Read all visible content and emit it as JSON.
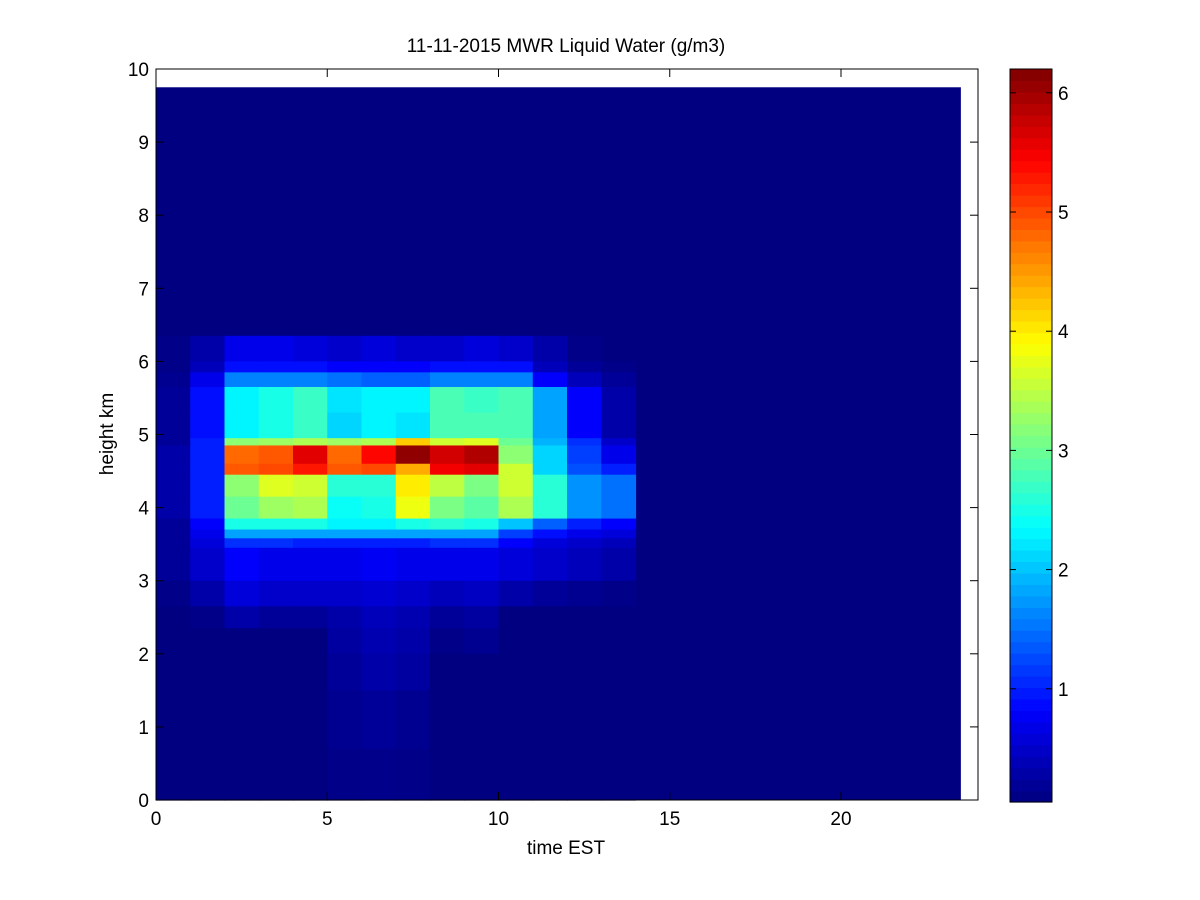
{
  "chart_data": {
    "type": "heatmap",
    "title": "11-11-2015 MWR Liquid Water (g/m3)",
    "xlabel": "time EST",
    "ylabel": "height km",
    "xlim": [
      0,
      24
    ],
    "ylim": [
      0,
      10
    ],
    "xticks": [
      "0",
      "5",
      "10",
      "15",
      "20"
    ],
    "yticks": [
      "0",
      "1",
      "2",
      "3",
      "4",
      "5",
      "6",
      "7",
      "8",
      "9",
      "10"
    ],
    "colorbar": {
      "colormap": "jet",
      "range": [
        0.05,
        6.2
      ],
      "ticks": [
        "1",
        "2",
        "3",
        "4",
        "5",
        "6"
      ]
    },
    "grid": false,
    "data_extent": {
      "x": [
        0,
        23.5
      ],
      "y": [
        0,
        9.75
      ]
    },
    "time_columns": [
      0.5,
      1.5,
      2.5,
      3.5,
      4.5,
      5.5,
      6.5,
      7.5,
      8.5,
      9.5,
      10.5,
      11.5,
      12.5,
      13.5
    ],
    "height_bands": [
      {
        "range": [
          6.0,
          6.35
        ],
        "values": [
          0.1,
          0.3,
          0.7,
          0.7,
          0.6,
          0.5,
          0.6,
          0.5,
          0.5,
          0.6,
          0.5,
          0.3,
          0.1,
          0.05
        ]
      },
      {
        "range": [
          5.85,
          6.0
        ],
        "values": [
          0.1,
          0.4,
          0.9,
          0.9,
          0.9,
          0.8,
          0.8,
          0.8,
          0.9,
          0.9,
          0.9,
          0.4,
          0.2,
          0.1
        ]
      },
      {
        "range": [
          5.65,
          5.85
        ],
        "values": [
          0.15,
          0.7,
          1.6,
          1.6,
          1.6,
          1.5,
          1.4,
          1.4,
          1.6,
          1.6,
          1.6,
          0.8,
          0.4,
          0.2
        ]
      },
      {
        "range": [
          5.3,
          5.65
        ],
        "values": [
          0.2,
          0.9,
          2.3,
          2.5,
          2.7,
          2.2,
          2.3,
          2.3,
          2.8,
          2.7,
          2.8,
          1.8,
          0.8,
          0.3
        ]
      },
      {
        "range": [
          4.95,
          5.3
        ],
        "values": [
          0.2,
          0.9,
          2.3,
          2.5,
          2.7,
          2.1,
          2.3,
          2.2,
          2.8,
          2.8,
          2.8,
          1.8,
          0.8,
          0.3
        ]
      },
      {
        "range": [
          4.85,
          4.95
        ],
        "values": [
          0.2,
          1.0,
          3.2,
          3.3,
          3.4,
          3.3,
          3.4,
          4.2,
          3.6,
          3.7,
          3.0,
          1.9,
          1.1,
          0.5
        ]
      },
      {
        "range": [
          4.6,
          4.85
        ],
        "values": [
          0.3,
          1.0,
          4.8,
          4.9,
          5.6,
          4.8,
          5.4,
          6.1,
          5.7,
          5.9,
          3.2,
          2.1,
          1.2,
          0.7
        ]
      },
      {
        "range": [
          4.45,
          4.6
        ],
        "values": [
          0.3,
          1.0,
          4.9,
          5.0,
          5.3,
          4.9,
          5.0,
          4.4,
          5.5,
          5.6,
          3.6,
          2.1,
          1.3,
          1.0
        ]
      },
      {
        "range": [
          4.15,
          4.45
        ],
        "values": [
          0.3,
          1.0,
          3.2,
          3.7,
          3.6,
          2.6,
          2.6,
          4.0,
          3.5,
          3.1,
          3.6,
          2.6,
          1.7,
          1.5
        ]
      },
      {
        "range": [
          3.85,
          4.15
        ],
        "values": [
          0.3,
          1.0,
          3.0,
          3.3,
          3.4,
          2.4,
          2.5,
          3.8,
          3.1,
          2.9,
          3.4,
          2.6,
          1.7,
          1.5
        ]
      },
      {
        "range": [
          3.7,
          3.85
        ],
        "values": [
          0.2,
          0.8,
          2.5,
          2.5,
          2.5,
          2.3,
          2.3,
          2.5,
          2.6,
          2.5,
          2.0,
          1.4,
          1.0,
          0.8
        ]
      },
      {
        "range": [
          3.58,
          3.7
        ],
        "values": [
          0.2,
          0.7,
          1.8,
          1.8,
          1.8,
          1.8,
          1.8,
          1.8,
          1.8,
          1.8,
          1.2,
          0.9,
          0.7,
          0.6
        ]
      },
      {
        "range": [
          3.45,
          3.58
        ],
        "values": [
          0.2,
          0.6,
          1.1,
          1.1,
          1.0,
          1.0,
          1.0,
          1.0,
          1.1,
          1.1,
          0.8,
          0.6,
          0.5,
          0.4
        ]
      },
      {
        "range": [
          3.0,
          3.45
        ],
        "values": [
          0.2,
          0.5,
          0.8,
          0.7,
          0.7,
          0.7,
          0.75,
          0.7,
          0.7,
          0.7,
          0.6,
          0.5,
          0.4,
          0.3
        ]
      },
      {
        "range": [
          2.65,
          3.0
        ],
        "values": [
          0.1,
          0.3,
          0.6,
          0.5,
          0.5,
          0.5,
          0.55,
          0.5,
          0.4,
          0.45,
          0.3,
          0.2,
          0.15,
          0.1
        ]
      },
      {
        "range": [
          2.35,
          2.65
        ],
        "values": [
          0.05,
          0.1,
          0.3,
          0.2,
          0.2,
          0.3,
          0.4,
          0.35,
          0.2,
          0.25,
          0.05,
          0.05,
          0.05,
          0.05
        ]
      },
      {
        "range": [
          2.0,
          2.35
        ],
        "values": [
          0.05,
          0.05,
          0.05,
          0.05,
          0.05,
          0.25,
          0.35,
          0.3,
          0.1,
          0.15,
          0.05,
          0.05,
          0.05,
          0.05
        ]
      },
      {
        "range": [
          1.5,
          2.0
        ],
        "values": [
          0.05,
          0.05,
          0.05,
          0.05,
          0.05,
          0.2,
          0.3,
          0.25,
          0.05,
          0.05,
          0.05,
          0.05,
          0.05,
          0.05
        ]
      },
      {
        "range": [
          0.7,
          1.5
        ],
        "values": [
          0.05,
          0.05,
          0.05,
          0.05,
          0.05,
          0.15,
          0.2,
          0.15,
          0.05,
          0.05,
          0.05,
          0.05,
          0.05,
          0.05
        ]
      },
      {
        "range": [
          0.0,
          0.7
        ],
        "values": [
          0.05,
          0.05,
          0.05,
          0.05,
          0.05,
          0.1,
          0.12,
          0.1,
          0.05,
          0.05,
          0.05,
          0.05,
          0.05,
          0.05
        ]
      }
    ],
    "background_value": 0.05
  }
}
